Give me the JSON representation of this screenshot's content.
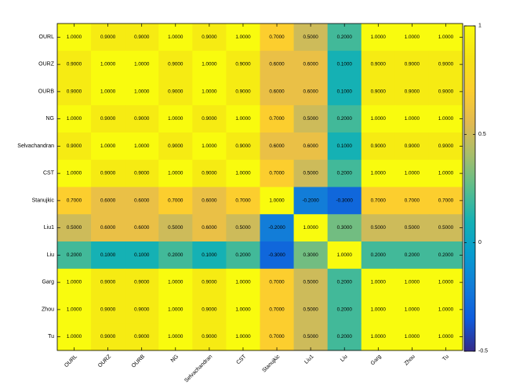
{
  "chart_data": {
    "type": "heatmap",
    "x_categories": [
      "OURL",
      "OURZ",
      "OURB",
      "NG",
      "Selvachandran",
      "CST",
      "Stanujkic",
      "Liu1",
      "Liu",
      "Garg",
      "Zhou",
      "Tu"
    ],
    "y_categories": [
      "OURL",
      "OURZ",
      "OURB",
      "NG",
      "Selvachandran",
      "CST",
      "Stanujkic",
      "Liu1",
      "Liu",
      "Garg",
      "Zhou",
      "Tu"
    ],
    "values": [
      [
        1.0,
        0.9,
        0.9,
        1.0,
        0.9,
        1.0,
        0.7,
        0.5,
        0.2,
        1.0,
        1.0,
        1.0
      ],
      [
        0.9,
        1.0,
        1.0,
        0.9,
        1.0,
        0.9,
        0.6,
        0.6,
        0.1,
        0.9,
        0.9,
        0.9
      ],
      [
        0.9,
        1.0,
        1.0,
        0.9,
        1.0,
        0.9,
        0.6,
        0.6,
        0.1,
        0.9,
        0.9,
        0.9
      ],
      [
        1.0,
        0.9,
        0.9,
        1.0,
        0.9,
        1.0,
        0.7,
        0.5,
        0.2,
        1.0,
        1.0,
        1.0
      ],
      [
        0.9,
        1.0,
        1.0,
        0.9,
        1.0,
        0.9,
        0.6,
        0.6,
        0.1,
        0.9,
        0.9,
        0.9
      ],
      [
        1.0,
        0.9,
        0.9,
        1.0,
        0.9,
        1.0,
        0.7,
        0.5,
        0.2,
        1.0,
        1.0,
        1.0
      ],
      [
        0.7,
        0.6,
        0.6,
        0.7,
        0.6,
        0.7,
        1.0,
        -0.2,
        -0.3,
        0.7,
        0.7,
        0.7
      ],
      [
        0.5,
        0.6,
        0.6,
        0.5,
        0.6,
        0.5,
        -0.2,
        1.0,
        0.3,
        0.5,
        0.5,
        0.5
      ],
      [
        0.2,
        0.1,
        0.1,
        0.2,
        0.1,
        0.2,
        -0.3,
        0.3,
        1.0,
        0.2,
        0.2,
        0.2
      ],
      [
        1.0,
        0.9,
        0.9,
        1.0,
        0.9,
        1.0,
        0.7,
        0.5,
        0.2,
        1.0,
        1.0,
        1.0
      ],
      [
        1.0,
        0.9,
        0.9,
        1.0,
        0.9,
        1.0,
        0.7,
        0.5,
        0.2,
        1.0,
        1.0,
        1.0
      ],
      [
        1.0,
        0.9,
        0.9,
        1.0,
        0.9,
        1.0,
        0.7,
        0.5,
        0.2,
        1.0,
        1.0,
        1.0
      ]
    ],
    "value_format_decimals": 4,
    "colorbar": {
      "range": [
        -0.5,
        1
      ],
      "ticks": [
        -0.5,
        0,
        0.5,
        1
      ],
      "tick_labels": [
        "-0.5",
        "0",
        "0.5",
        "1"
      ],
      "colormap": "parula"
    },
    "title": "",
    "xlabel": "",
    "ylabel": ""
  }
}
